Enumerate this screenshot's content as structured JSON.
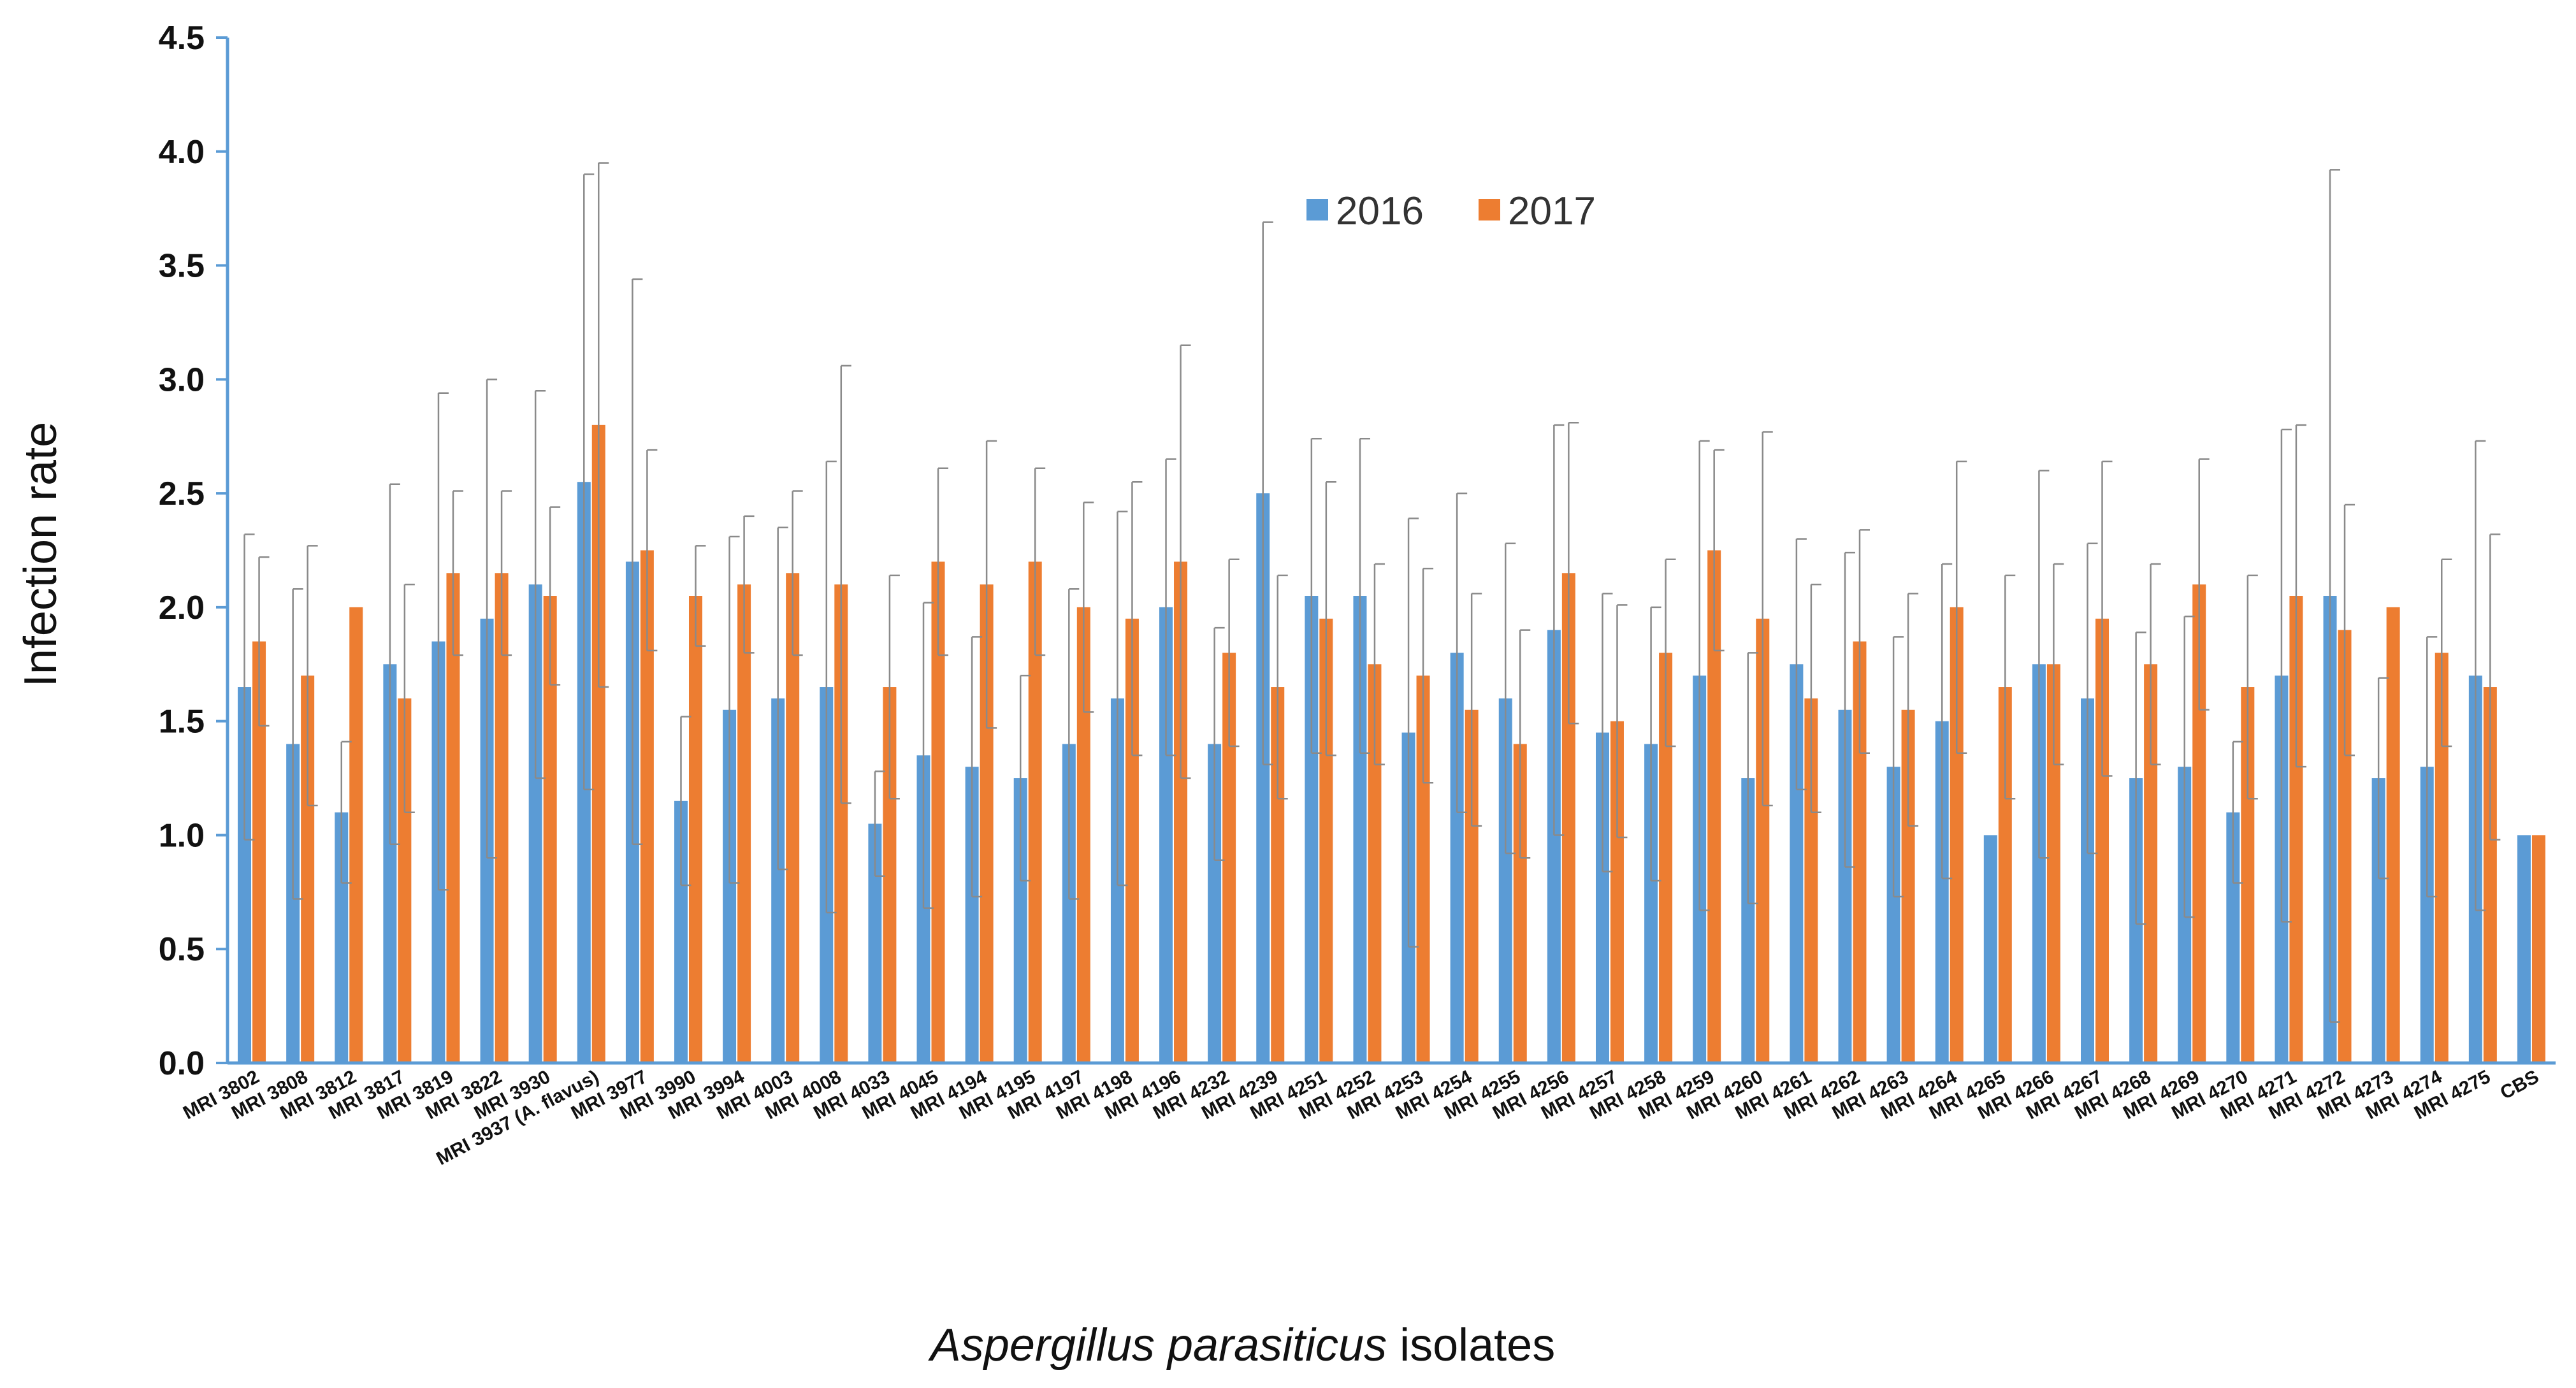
{
  "chart_data": {
    "type": "bar",
    "title": "",
    "xlabel_italic": "Aspergillus parasiticus",
    "xlabel_rest": " isolates",
    "ylabel": "Infection rate",
    "ylim": [
      0,
      4.5
    ],
    "yticks": [
      "0.0",
      "0.5",
      "1.0",
      "1.5",
      "2.0",
      "2.5",
      "3.0",
      "3.5",
      "4.0",
      "4.5"
    ],
    "grid": false,
    "legend_position": "top-center",
    "categories": [
      "MRI 3802",
      "MRI 3808",
      "MRI 3812",
      "MRI 3817",
      "MRI 3819",
      "MRI 3822",
      "MRI 3930",
      "MRI 3937 (A. flavus)",
      "MRI 3977",
      "MRI 3990",
      "MRI 3994",
      "MRI 4003",
      "MRI 4008",
      "MRI 4033",
      "MRI 4045",
      "MRI 4194",
      "MRI 4195",
      "MRI 4197",
      "MRI 4198",
      "MRI 4196",
      "MRI 4232",
      "MRI 4239",
      "MRI 4251",
      "MRI 4252",
      "MRI 4253",
      "MRI 4254",
      "MRI 4255",
      "MRI 4256",
      "MRI 4257",
      "MRI 4258",
      "MRI 4259",
      "MRI 4260",
      "MRI 4261",
      "MRI 4262",
      "MRI 4263",
      "MRI 4264",
      "MRI 4265",
      "MRI 4266",
      "MRI 4267",
      "MRI 4268",
      "MRI 4269",
      "MRI 4270",
      "MRI 4271",
      "MRI 4272",
      "MRI 4273",
      "MRI 4274",
      "MRI 4275",
      "CBS"
    ],
    "series": [
      {
        "name": "2016",
        "color": "#5b9bd5",
        "values": [
          1.65,
          1.4,
          1.1,
          1.75,
          1.85,
          1.95,
          2.1,
          2.55,
          2.2,
          1.15,
          1.55,
          1.6,
          1.65,
          1.05,
          1.35,
          1.3,
          1.25,
          1.4,
          1.6,
          2.0,
          1.4,
          2.5,
          2.05,
          2.05,
          1.45,
          1.8,
          1.6,
          1.9,
          1.45,
          1.4,
          1.7,
          1.25,
          1.75,
          1.55,
          1.3,
          1.5,
          1.0,
          1.75,
          1.6,
          1.25,
          1.3,
          1.1,
          1.7,
          2.05,
          1.25,
          1.3,
          1.7,
          1.0
        ],
        "errors": [
          0.67,
          0.68,
          0.31,
          0.79,
          1.09,
          1.05,
          0.85,
          1.35,
          1.24,
          0.37,
          0.76,
          0.75,
          0.99,
          0.23,
          0.67,
          0.57,
          0.45,
          0.68,
          0.82,
          0.65,
          0.51,
          1.19,
          0.69,
          0.69,
          0.94,
          0.7,
          0.68,
          0.9,
          0.61,
          0.6,
          1.03,
          0.55,
          0.55,
          0.69,
          0.57,
          0.69,
          0.0,
          0.85,
          0.68,
          0.64,
          0.66,
          0.31,
          1.08,
          1.87,
          0.44,
          0.57,
          1.03,
          0.0
        ]
      },
      {
        "name": "2017",
        "color": "#ed7d31",
        "values": [
          1.85,
          1.7,
          2.0,
          1.6,
          2.15,
          2.15,
          2.05,
          2.8,
          2.25,
          2.05,
          2.1,
          2.15,
          2.1,
          1.65,
          2.2,
          2.1,
          2.2,
          2.0,
          1.95,
          2.2,
          1.8,
          1.65,
          1.95,
          1.75,
          1.7,
          1.55,
          1.4,
          2.15,
          1.5,
          1.8,
          2.25,
          1.95,
          1.6,
          1.85,
          1.55,
          2.0,
          1.65,
          1.75,
          1.95,
          1.75,
          2.1,
          1.65,
          2.05,
          1.9,
          2.0,
          1.8,
          1.65,
          1.0
        ],
        "errors": [
          0.37,
          0.57,
          0.0,
          0.5,
          0.36,
          0.36,
          0.39,
          1.15,
          0.44,
          0.22,
          0.3,
          0.36,
          0.96,
          0.49,
          0.41,
          0.63,
          0.41,
          0.46,
          0.6,
          0.95,
          0.41,
          0.49,
          0.6,
          0.44,
          0.47,
          0.51,
          0.5,
          0.66,
          0.51,
          0.41,
          0.44,
          0.82,
          0.5,
          0.49,
          0.51,
          0.64,
          0.49,
          0.44,
          0.69,
          0.44,
          0.55,
          0.49,
          0.75,
          0.55,
          0.0,
          0.41,
          0.67,
          0.0
        ]
      }
    ]
  }
}
